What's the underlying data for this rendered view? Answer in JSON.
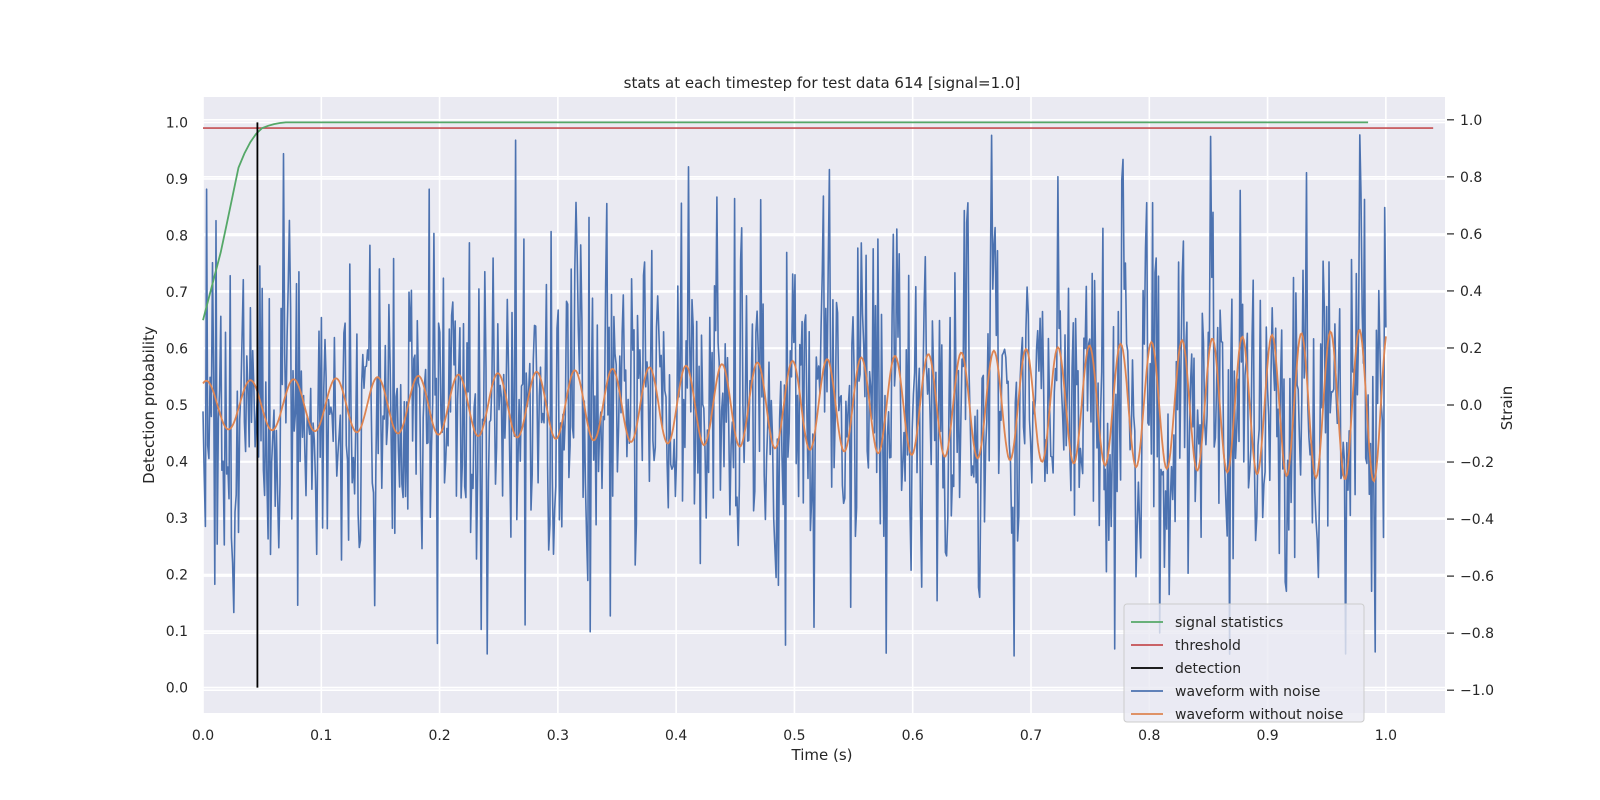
{
  "chart_data": {
    "type": "line",
    "title": "stats at each timestep for test data 614 [signal=1.0]",
    "xlabel": "Time (s)",
    "ylabel": "Detection probability",
    "y2label": "Strain",
    "xlim": [
      0.0,
      1.05
    ],
    "ylim": [
      -0.045,
      1.045
    ],
    "y2lim": [
      -1.08,
      1.08
    ],
    "xticks": [
      0.0,
      0.1,
      0.2,
      0.3,
      0.4,
      0.5,
      0.6,
      0.7,
      0.8,
      0.9,
      1.0
    ],
    "xtick_labels": [
      "0.0",
      "0.1",
      "0.2",
      "0.3",
      "0.4",
      "0.5",
      "0.6",
      "0.7",
      "0.8",
      "0.9",
      "1.0"
    ],
    "yticks": [
      0.0,
      0.1,
      0.2,
      0.3,
      0.4,
      0.5,
      0.6,
      0.7,
      0.8,
      0.9,
      1.0
    ],
    "ytick_labels": [
      "0.0",
      "0.1",
      "0.2",
      "0.3",
      "0.4",
      "0.5",
      "0.6",
      "0.7",
      "0.8",
      "0.9",
      "1.0"
    ],
    "y2ticks": [
      -1.0,
      -0.8,
      -0.6,
      -0.4,
      -0.2,
      0.0,
      0.2,
      0.4,
      0.6,
      0.8,
      1.0
    ],
    "y2tick_labels": [
      "−1.0",
      "−0.8",
      "−0.6",
      "−0.4",
      "−0.2",
      "0.0",
      "0.2",
      "0.4",
      "0.6",
      "0.8",
      "1.0"
    ],
    "grid": true,
    "legend_position": "lower-right",
    "legend": [
      {
        "label": "signal statistics",
        "color": "#55a868"
      },
      {
        "label": "threshold",
        "color": "#c44e52"
      },
      {
        "label": "detection",
        "color": "#000000"
      },
      {
        "label": "waveform with noise",
        "color": "#4c72b0"
      },
      {
        "label": "waveform without noise",
        "color": "#dd8452"
      }
    ],
    "series": {
      "signal_statistics": {
        "axis": "left",
        "color": "#55a868",
        "x": [
          0.0,
          0.005,
          0.01,
          0.015,
          0.02,
          0.025,
          0.03,
          0.035,
          0.04,
          0.045,
          0.05,
          0.055,
          0.06,
          0.065,
          0.07,
          0.08,
          0.1,
          0.2,
          0.4,
          0.6,
          0.8,
          0.985
        ],
        "y": [
          0.65,
          0.69,
          0.73,
          0.77,
          0.82,
          0.87,
          0.92,
          0.945,
          0.965,
          0.98,
          0.99,
          0.994,
          0.997,
          0.999,
          1.0,
          1.0,
          1.0,
          1.0,
          1.0,
          1.0,
          1.0,
          1.0
        ]
      },
      "threshold": {
        "axis": "left",
        "color": "#c44e52",
        "y": 0.99,
        "x": [
          0.0,
          1.04
        ]
      },
      "detection": {
        "axis": "left",
        "color": "#000000",
        "x": 0.046,
        "y": [
          0.0,
          1.0
        ]
      },
      "waveform_with_noise": {
        "axis": "right",
        "color": "#4c72b0",
        "n_points": 1000,
        "x_range": [
          0.0,
          1.0
        ],
        "approx_std": 0.3,
        "approx_range": [
          -0.88,
          0.96
        ]
      },
      "waveform_without_noise": {
        "axis": "right",
        "color": "#dd8452",
        "n_points": 1000,
        "x_range": [
          0.0,
          1.0
        ],
        "amplitude_start": 0.085,
        "amplitude_end": 0.27,
        "cycles": 34
      }
    }
  }
}
